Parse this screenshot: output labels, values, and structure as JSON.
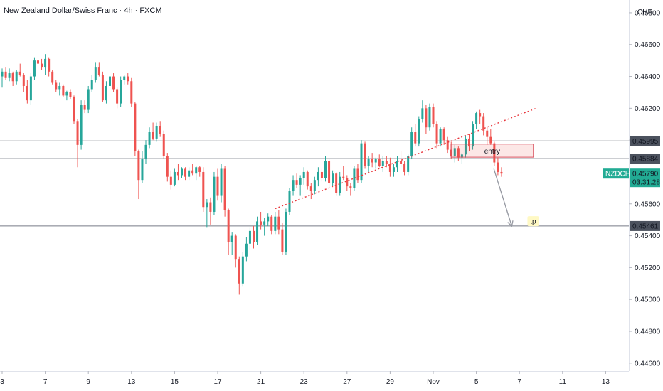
{
  "chart_data": {
    "type": "candlestick",
    "title": "New Zealand Dollar/Swiss Franc · 4h · FXCM",
    "currency": "CHF",
    "ylim": [
      0.4455,
      0.4688
    ],
    "y_ticks": [
      "0.46800",
      "0.46600",
      "0.46400",
      "0.46200",
      "0.46000",
      "0.45800",
      "0.45600",
      "0.45400",
      "0.45200",
      "0.45000",
      "0.44800",
      "0.44600"
    ],
    "x_ticks": [
      "3",
      "7",
      "9",
      "13",
      "15",
      "17",
      "21",
      "23",
      "27",
      "29",
      "Nov",
      "5",
      "7",
      "11",
      "13"
    ],
    "x_tick_indices": [
      0,
      12,
      24,
      36,
      48,
      60,
      72,
      84,
      96,
      108,
      120,
      132,
      144,
      156,
      168
    ],
    "candles": [
      [
        0.464,
        0.4645,
        0.4633,
        0.4643
      ],
      [
        0.4643,
        0.4646,
        0.4638,
        0.4639
      ],
      [
        0.4639,
        0.4645,
        0.4637,
        0.4642
      ],
      [
        0.4642,
        0.4643,
        0.4634,
        0.4637
      ],
      [
        0.4637,
        0.4644,
        0.4635,
        0.4643
      ],
      [
        0.4643,
        0.4648,
        0.464,
        0.4641
      ],
      [
        0.4641,
        0.4642,
        0.463,
        0.4634
      ],
      [
        0.4634,
        0.4638,
        0.4623,
        0.4625
      ],
      [
        0.4625,
        0.4642,
        0.4622,
        0.464
      ],
      [
        0.464,
        0.4652,
        0.4638,
        0.465
      ],
      [
        0.465,
        0.4659,
        0.4646,
        0.4648
      ],
      [
        0.4648,
        0.4651,
        0.4644,
        0.4646
      ],
      [
        0.4646,
        0.4654,
        0.4641,
        0.4651
      ],
      [
        0.4651,
        0.4652,
        0.464,
        0.4643
      ],
      [
        0.4643,
        0.4644,
        0.4635,
        0.4636
      ],
      [
        0.4636,
        0.4638,
        0.463,
        0.4632
      ],
      [
        0.4632,
        0.4636,
        0.4628,
        0.4634
      ],
      [
        0.4634,
        0.4635,
        0.4627,
        0.4628
      ],
      [
        0.4628,
        0.4631,
        0.4625,
        0.463
      ],
      [
        0.463,
        0.4632,
        0.4626,
        0.4627
      ],
      [
        0.4627,
        0.4628,
        0.461,
        0.4612
      ],
      [
        0.4612,
        0.4613,
        0.4583,
        0.4597
      ],
      [
        0.4597,
        0.4625,
        0.4594,
        0.4622
      ],
      [
        0.4622,
        0.4625,
        0.4617,
        0.4619
      ],
      [
        0.4619,
        0.4634,
        0.4617,
        0.4632
      ],
      [
        0.4632,
        0.4641,
        0.463,
        0.4638
      ],
      [
        0.4638,
        0.4649,
        0.4636,
        0.4646
      ],
      [
        0.4646,
        0.4649,
        0.464,
        0.4641
      ],
      [
        0.4641,
        0.4643,
        0.4624,
        0.4625
      ],
      [
        0.4625,
        0.4637,
        0.4623,
        0.4634
      ],
      [
        0.4634,
        0.4643,
        0.4632,
        0.464
      ],
      [
        0.464,
        0.4642,
        0.463,
        0.4632
      ],
      [
        0.4632,
        0.4633,
        0.462,
        0.4623
      ],
      [
        0.4623,
        0.464,
        0.4621,
        0.4638
      ],
      [
        0.4638,
        0.4641,
        0.4635,
        0.464
      ],
      [
        0.464,
        0.4642,
        0.4635,
        0.4637
      ],
      [
        0.4637,
        0.4639,
        0.4621,
        0.4623
      ],
      [
        0.4623,
        0.4624,
        0.459,
        0.4593
      ],
      [
        0.4593,
        0.4594,
        0.4563,
        0.4575
      ],
      [
        0.4575,
        0.4593,
        0.4573,
        0.4588
      ],
      [
        0.4588,
        0.46,
        0.4585,
        0.4597
      ],
      [
        0.4597,
        0.4608,
        0.4595,
        0.4605
      ],
      [
        0.4605,
        0.4611,
        0.46,
        0.4601
      ],
      [
        0.4601,
        0.4611,
        0.4599,
        0.4609
      ],
      [
        0.4609,
        0.4612,
        0.4602,
        0.4604
      ],
      [
        0.4604,
        0.4606,
        0.4588,
        0.459
      ],
      [
        0.459,
        0.4592,
        0.4574,
        0.4577
      ],
      [
        0.4577,
        0.4581,
        0.4569,
        0.4572
      ],
      [
        0.4572,
        0.4582,
        0.4571,
        0.458
      ],
      [
        0.458,
        0.4585,
        0.4575,
        0.4578
      ],
      [
        0.4578,
        0.4583,
        0.4576,
        0.4582
      ],
      [
        0.4582,
        0.4583,
        0.4575,
        0.4577
      ],
      [
        0.4577,
        0.4583,
        0.4575,
        0.4581
      ],
      [
        0.4581,
        0.4585,
        0.4578,
        0.4579
      ],
      [
        0.4579,
        0.4584,
        0.4575,
        0.4583
      ],
      [
        0.4583,
        0.4584,
        0.4577,
        0.458
      ],
      [
        0.458,
        0.4583,
        0.4555,
        0.4558
      ],
      [
        0.4558,
        0.4563,
        0.4545,
        0.4561
      ],
      [
        0.4561,
        0.4564,
        0.4547,
        0.4555
      ],
      [
        0.4555,
        0.458,
        0.4553,
        0.4577
      ],
      [
        0.4577,
        0.4582,
        0.4562,
        0.4565
      ],
      [
        0.4565,
        0.4585,
        0.4561,
        0.4582
      ],
      [
        0.4582,
        0.4584,
        0.4552,
        0.4556
      ],
      [
        0.4556,
        0.4557,
        0.4528,
        0.4536
      ],
      [
        0.4536,
        0.4542,
        0.4528,
        0.454
      ],
      [
        0.454,
        0.4541,
        0.452,
        0.4525
      ],
      [
        0.4525,
        0.4527,
        0.4503,
        0.451
      ],
      [
        0.451,
        0.453,
        0.4508,
        0.4527
      ],
      [
        0.4527,
        0.4539,
        0.4524,
        0.4535
      ],
      [
        0.4535,
        0.4545,
        0.4531,
        0.4543
      ],
      [
        0.4543,
        0.4546,
        0.4532,
        0.4536
      ],
      [
        0.4536,
        0.4552,
        0.4534,
        0.4549
      ],
      [
        0.4549,
        0.4555,
        0.4544,
        0.4547
      ],
      [
        0.4547,
        0.4551,
        0.454,
        0.4549
      ],
      [
        0.4549,
        0.4554,
        0.4546,
        0.4552
      ],
      [
        0.4552,
        0.4553,
        0.4541,
        0.4543
      ],
      [
        0.4543,
        0.4555,
        0.4541,
        0.4552
      ],
      [
        0.4552,
        0.4556,
        0.4541,
        0.4544
      ],
      [
        0.4544,
        0.4548,
        0.4528,
        0.453
      ],
      [
        0.453,
        0.4557,
        0.4528,
        0.4555
      ],
      [
        0.4555,
        0.457,
        0.4553,
        0.4568
      ],
      [
        0.4568,
        0.4578,
        0.4565,
        0.4575
      ],
      [
        0.4575,
        0.4579,
        0.457,
        0.4572
      ],
      [
        0.4572,
        0.4578,
        0.4565,
        0.4576
      ],
      [
        0.4576,
        0.4583,
        0.4572,
        0.458
      ],
      [
        0.458,
        0.4581,
        0.4569,
        0.4571
      ],
      [
        0.4571,
        0.4573,
        0.4563,
        0.4568
      ],
      [
        0.4568,
        0.4577,
        0.4566,
        0.4575
      ],
      [
        0.4575,
        0.4583,
        0.4571,
        0.458
      ],
      [
        0.458,
        0.4582,
        0.4574,
        0.4576
      ],
      [
        0.4576,
        0.459,
        0.4574,
        0.4587
      ],
      [
        0.4587,
        0.4588,
        0.457,
        0.4573
      ],
      [
        0.4573,
        0.4581,
        0.4571,
        0.4579
      ],
      [
        0.4579,
        0.458,
        0.4565,
        0.4567
      ],
      [
        0.4567,
        0.458,
        0.4565,
        0.4577
      ],
      [
        0.4577,
        0.4584,
        0.4575,
        0.4576
      ],
      [
        0.4576,
        0.4578,
        0.4568,
        0.4571
      ],
      [
        0.4571,
        0.4573,
        0.4565,
        0.457
      ],
      [
        0.457,
        0.4584,
        0.4568,
        0.4582
      ],
      [
        0.4582,
        0.4585,
        0.4573,
        0.4575
      ],
      [
        0.4575,
        0.46,
        0.4573,
        0.4598
      ],
      [
        0.4598,
        0.4599,
        0.4582,
        0.4584
      ],
      [
        0.4584,
        0.459,
        0.458,
        0.4588
      ],
      [
        0.4588,
        0.4592,
        0.4583,
        0.4586
      ],
      [
        0.4586,
        0.4589,
        0.4582,
        0.4588
      ],
      [
        0.4588,
        0.4591,
        0.4583,
        0.4584
      ],
      [
        0.4584,
        0.459,
        0.458,
        0.4587
      ],
      [
        0.4587,
        0.459,
        0.4583,
        0.4585
      ],
      [
        0.4585,
        0.4589,
        0.4577,
        0.458
      ],
      [
        0.458,
        0.4585,
        0.4577,
        0.4583
      ],
      [
        0.4583,
        0.459,
        0.458,
        0.4587
      ],
      [
        0.4587,
        0.4593,
        0.4583,
        0.4585
      ],
      [
        0.4585,
        0.4587,
        0.4578,
        0.458
      ],
      [
        0.458,
        0.4591,
        0.4578,
        0.459
      ],
      [
        0.459,
        0.4608,
        0.4588,
        0.4605
      ],
      [
        0.4605,
        0.461,
        0.4596,
        0.4598
      ],
      [
        0.4598,
        0.4615,
        0.4596,
        0.4613
      ],
      [
        0.4613,
        0.4625,
        0.4611,
        0.462
      ],
      [
        0.462,
        0.4622,
        0.4604,
        0.4608
      ],
      [
        0.4608,
        0.4623,
        0.4606,
        0.4621
      ],
      [
        0.4621,
        0.4623,
        0.4608,
        0.461
      ],
      [
        0.461,
        0.4612,
        0.4595,
        0.4598
      ],
      [
        0.4598,
        0.4608,
        0.4596,
        0.4607
      ],
      [
        0.4607,
        0.4608,
        0.4597,
        0.46
      ],
      [
        0.46,
        0.4602,
        0.4592,
        0.4594
      ],
      [
        0.4594,
        0.4599,
        0.4588,
        0.459
      ],
      [
        0.459,
        0.4597,
        0.4586,
        0.4595
      ],
      [
        0.4595,
        0.4596,
        0.4587,
        0.4589
      ],
      [
        0.4589,
        0.4592,
        0.4585,
        0.4591
      ],
      [
        0.4591,
        0.4603,
        0.4589,
        0.4601
      ],
      [
        0.4601,
        0.4604,
        0.4593,
        0.4596
      ],
      [
        0.4596,
        0.4612,
        0.4594,
        0.461
      ],
      [
        0.461,
        0.4618,
        0.4607,
        0.4617
      ],
      [
        0.4617,
        0.4619,
        0.461,
        0.4615
      ],
      [
        0.4615,
        0.4617,
        0.4603,
        0.4606
      ],
      [
        0.4606,
        0.4608,
        0.4597,
        0.4602
      ],
      [
        0.4602,
        0.4607,
        0.4597,
        0.4598
      ],
      [
        0.4598,
        0.4599,
        0.4584,
        0.4586
      ],
      [
        0.4586,
        0.4589,
        0.4578,
        0.458
      ],
      [
        0.458,
        0.4583,
        0.4577,
        0.4579
      ]
    ],
    "horizontal_levels": [
      0.45995,
      0.45884,
      0.45461
    ],
    "trendline": {
      "from": [
        76,
        0.4557
      ],
      "to": [
        136,
        0.4609
      ],
      "style": "dotted",
      "color": "#e8353b"
    },
    "entry_zone": {
      "label": "entry",
      "from_index": 120,
      "to_index": 135,
      "top": 0.45975,
      "bottom": 0.45893
    },
    "target": {
      "label": "tp",
      "arrow_from": [
        124,
        0.4582
      ],
      "arrow_to": [
        129,
        0.4546
      ]
    },
    "symbol": {
      "name": "NZDCHF",
      "price": "0.45790",
      "countdown": "03:31:28"
    },
    "colors": {
      "up": "#26a69a",
      "down": "#ef5350",
      "accent": "#22ab94"
    }
  }
}
